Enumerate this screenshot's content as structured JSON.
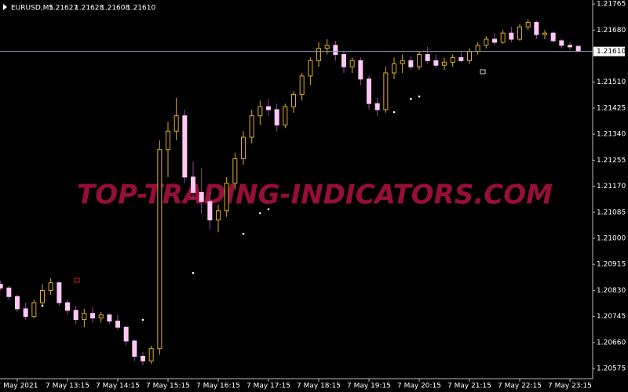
{
  "chart_data": {
    "type": "candlestick",
    "symbol": "EURUSD,M5",
    "header_quote": [
      "1.21627",
      "1.21628",
      "1.21608",
      "1.21610"
    ],
    "watermark": "TOP-TRADING-INDICATORS.COM",
    "up_color": "#e0ad22",
    "down_color": "#ffc8f6",
    "down_wick_color": "#9a4a9a",
    "ylim": [
      1.20542,
      1.21778
    ],
    "yticks": [
      {
        "value": 1.21765,
        "label": "1.21765"
      },
      {
        "value": 1.2168,
        "label": "1.21680"
      },
      {
        "value": 1.2151,
        "label": "1.21510"
      },
      {
        "value": 1.21425,
        "label": "1.21425"
      },
      {
        "value": 1.2134,
        "label": "1.21340"
      },
      {
        "value": 1.21255,
        "label": "1.21255"
      },
      {
        "value": 1.2117,
        "label": "1.21170"
      },
      {
        "value": 1.21085,
        "label": "1.21085"
      },
      {
        "value": 1.21,
        "label": "1.21000"
      },
      {
        "value": 1.20915,
        "label": "1.20915"
      },
      {
        "value": 1.2083,
        "label": "1.20830"
      },
      {
        "value": 1.20745,
        "label": "1.20745"
      },
      {
        "value": 1.2066,
        "label": "1.20660"
      },
      {
        "value": 1.20575,
        "label": "1.20575"
      }
    ],
    "last_price": {
      "value": 1.2161,
      "label": "1.21610"
    },
    "categories": [
      null,
      null,
      "7 May 2021",
      null,
      null,
      null,
      null,
      null,
      "7 May 13:15",
      null,
      null,
      null,
      null,
      null,
      "7 May 14:15",
      null,
      null,
      null,
      null,
      null,
      "7 May 15:15",
      null,
      null,
      null,
      null,
      null,
      "7 May 16:15",
      null,
      null,
      null,
      null,
      null,
      "7 May 17:15",
      null,
      null,
      null,
      null,
      null,
      "7 May 18:15",
      null,
      null,
      null,
      null,
      null,
      "7 May 19:15",
      null,
      null,
      null,
      null,
      null,
      "7 May 20:15",
      null,
      null,
      null,
      null,
      null,
      "7 May 21:15",
      null,
      null,
      null,
      null,
      null,
      "7 May 22:15",
      null,
      null,
      null,
      null,
      null,
      "7 May 23:15",
      null
    ],
    "candles": [
      [
        1.2085,
        1.20862,
        1.2083,
        1.20838
      ],
      [
        1.20838,
        1.20845,
        1.208,
        1.2081
      ],
      [
        1.2081,
        1.20815,
        1.2076,
        1.2077
      ],
      [
        1.2077,
        1.2079,
        1.20735,
        1.20745
      ],
      [
        1.20745,
        1.208,
        1.2074,
        1.2079
      ],
      [
        1.2079,
        1.2085,
        1.2078,
        1.2083
      ],
      [
        1.2083,
        1.2087,
        1.20815,
        1.20855
      ],
      [
        1.20855,
        1.2086,
        1.2078,
        1.2079
      ],
      [
        1.2079,
        1.208,
        1.2075,
        1.20765
      ],
      [
        1.20765,
        1.2078,
        1.2072,
        1.20735
      ],
      [
        1.20735,
        1.2077,
        1.2071,
        1.20755
      ],
      [
        1.20755,
        1.20775,
        1.20725,
        1.2074
      ],
      [
        1.2074,
        1.2076,
        1.20725,
        1.2075
      ],
      [
        1.2075,
        1.20755,
        1.2072,
        1.2073
      ],
      [
        1.2073,
        1.2075,
        1.207,
        1.2071
      ],
      [
        1.2071,
        1.20715,
        1.2065,
        1.20665
      ],
      [
        1.20665,
        1.2067,
        1.206,
        1.20615
      ],
      [
        1.20615,
        1.2063,
        1.20585,
        1.206
      ],
      [
        1.206,
        1.2065,
        1.2059,
        1.2064
      ],
      [
        1.2064,
        1.2132,
        1.2062,
        1.2129
      ],
      [
        1.2129,
        1.2138,
        1.212,
        1.2135
      ],
      [
        1.2135,
        1.21458,
        1.2132,
        1.214
      ],
      [
        1.214,
        1.2142,
        1.2118,
        1.212
      ],
      [
        1.212,
        1.2125,
        1.2113,
        1.2115
      ],
      [
        1.2115,
        1.2123,
        1.2108,
        1.2112
      ],
      [
        1.2112,
        1.2115,
        1.2103,
        1.2106
      ],
      [
        1.2106,
        1.2111,
        1.2102,
        1.2109
      ],
      [
        1.2109,
        1.212,
        1.2107,
        1.2118
      ],
      [
        1.2118,
        1.2128,
        1.2116,
        1.2126
      ],
      [
        1.2126,
        1.2135,
        1.2124,
        1.2133
      ],
      [
        1.2133,
        1.2142,
        1.2131,
        1.214
      ],
      [
        1.214,
        1.2145,
        1.2137,
        1.2143
      ],
      [
        1.2143,
        1.21455,
        1.214,
        1.2142
      ],
      [
        1.2142,
        1.2144,
        1.2135,
        1.2137
      ],
      [
        1.2137,
        1.2144,
        1.2136,
        1.2143
      ],
      [
        1.2143,
        1.2148,
        1.2141,
        1.2147
      ],
      [
        1.2147,
        1.2154,
        1.2145,
        1.2153
      ],
      [
        1.2153,
        1.2159,
        1.215,
        1.2158
      ],
      [
        1.2158,
        1.2164,
        1.2156,
        1.2162
      ],
      [
        1.2162,
        1.2165,
        1.216,
        1.2163
      ],
      [
        1.2163,
        1.21645,
        1.2158,
        1.216
      ],
      [
        1.216,
        1.2161,
        1.2154,
        1.2156
      ],
      [
        1.2156,
        1.2159,
        1.2154,
        1.2158
      ],
      [
        1.2158,
        1.2159,
        1.215,
        1.2152
      ],
      [
        1.2152,
        1.2153,
        1.2142,
        1.2144
      ],
      [
        1.2144,
        1.2146,
        1.214,
        1.2142
      ],
      [
        1.2142,
        1.2156,
        1.2141,
        1.2154
      ],
      [
        1.2154,
        1.2159,
        1.2152,
        1.2157
      ],
      [
        1.2157,
        1.216,
        1.2154,
        1.2158
      ],
      [
        1.2158,
        1.21595,
        1.2155,
        1.2156
      ],
      [
        1.2156,
        1.2161,
        1.2155,
        1.216
      ],
      [
        1.216,
        1.21625,
        1.2157,
        1.2158
      ],
      [
        1.2158,
        1.216,
        1.21555,
        1.21565
      ],
      [
        1.21565,
        1.2159,
        1.2155,
        1.21575
      ],
      [
        1.21575,
        1.216,
        1.2156,
        1.2159
      ],
      [
        1.2159,
        1.2161,
        1.21575,
        1.2158
      ],
      [
        1.2158,
        1.2162,
        1.2157,
        1.2161
      ],
      [
        1.2161,
        1.2164,
        1.216,
        1.2163
      ],
      [
        1.2163,
        1.2166,
        1.2162,
        1.2165
      ],
      [
        1.2165,
        1.2167,
        1.2163,
        1.2164
      ],
      [
        1.2164,
        1.2168,
        1.21635,
        1.2167
      ],
      [
        1.2167,
        1.2169,
        1.2164,
        1.2165
      ],
      [
        1.2165,
        1.217,
        1.21645,
        1.2169
      ],
      [
        1.2169,
        1.21715,
        1.2168,
        1.21705
      ],
      [
        1.21705,
        1.2171,
        1.2165,
        1.21665
      ],
      [
        1.21665,
        1.2168,
        1.2165,
        1.2167
      ],
      [
        1.2167,
        1.21675,
        1.2164,
        1.21645
      ],
      [
        1.21645,
        1.2165,
        1.2162,
        1.2163
      ],
      [
        1.2163,
        1.2164,
        1.21615,
        1.21625
      ],
      [
        1.21627,
        1.21628,
        1.21608,
        1.2161
      ]
    ],
    "signals": {
      "x": [
        23,
        29,
        31,
        32,
        47,
        49,
        50,
        17,
        5
      ],
      "values": [
        1.20887,
        1.21015,
        1.21082,
        1.21095,
        1.21412,
        1.21455,
        1.21463,
        1.20734,
        1.2078
      ]
    }
  }
}
